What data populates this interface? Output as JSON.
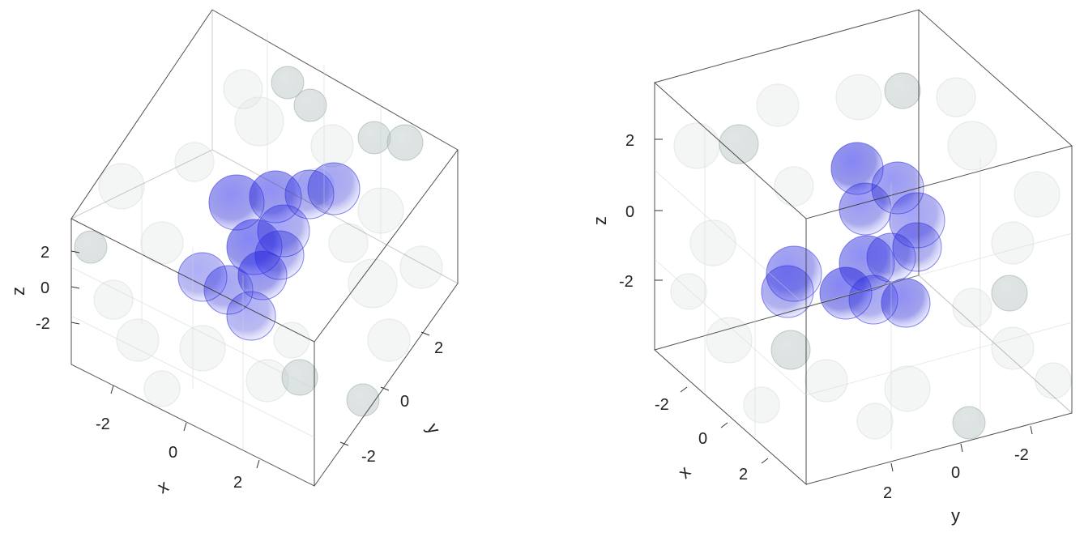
{
  "panels": [
    {
      "axes": {
        "x": {
          "label": "x",
          "ticks": [
            "-2",
            "0",
            "2"
          ]
        },
        "y": {
          "label": "y",
          "ticks": [
            "2",
            "0",
            "-2"
          ]
        },
        "z": {
          "label": "z",
          "ticks": [
            "2",
            "0",
            "-2"
          ]
        }
      }
    },
    {
      "axes": {
        "x": {
          "label": "x",
          "ticks": [
            "-2",
            "0",
            "2"
          ]
        },
        "y": {
          "label": "y",
          "ticks": [
            "2",
            "0",
            "-2"
          ]
        },
        "z": {
          "label": "z",
          "ticks": [
            "2",
            "0",
            "-2"
          ]
        }
      }
    }
  ],
  "colors": {
    "cluster_sphere": "#1414d8",
    "background_sphere": "#9fb0ad",
    "box_edge": "#222222"
  }
}
